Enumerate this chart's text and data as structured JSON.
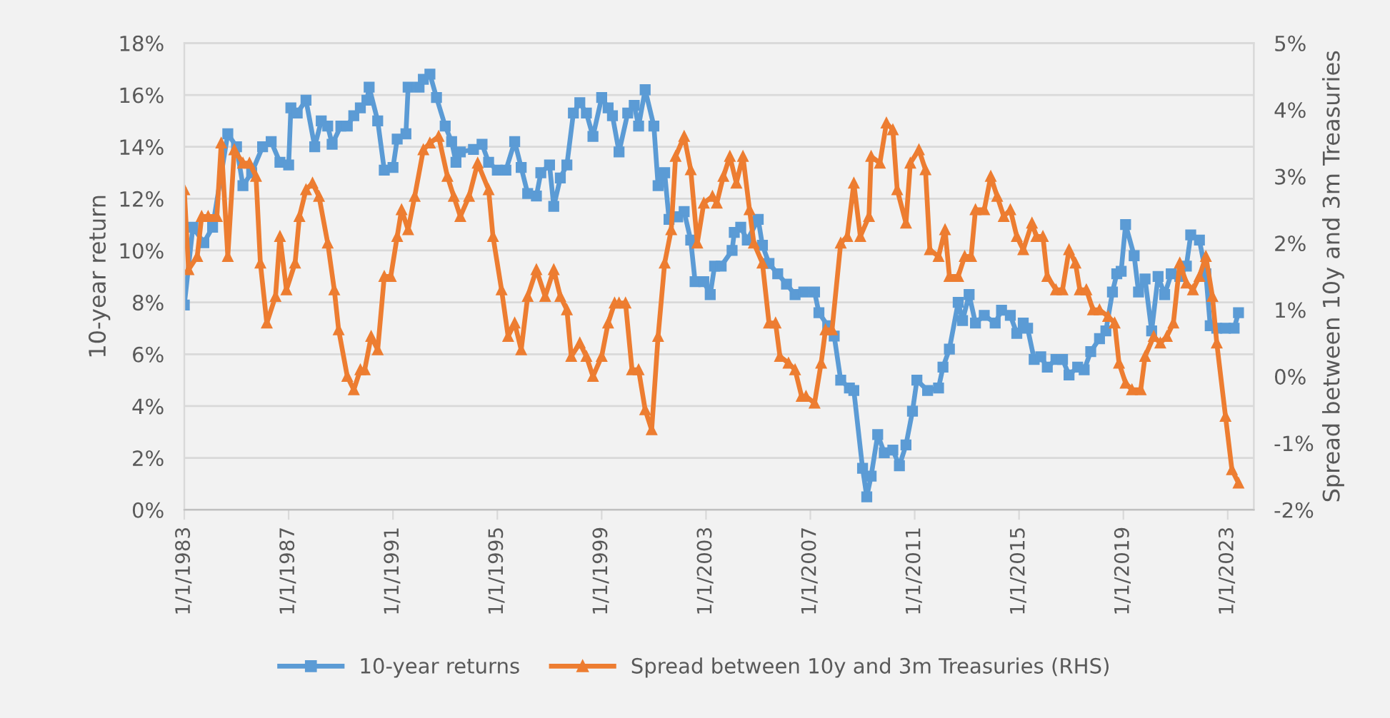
{
  "chart_data": {
    "type": "line",
    "ylabel": "10-year return",
    "y2label": "Spread between 10y and 3m Treasuries",
    "xlim": [
      "1983-01-01",
      "2024-01-01"
    ],
    "xticks": [
      {
        "value": "1983-01-01",
        "label": "1/1/1983"
      },
      {
        "value": "1987-01-01",
        "label": "1/1/1987"
      },
      {
        "value": "1991-01-01",
        "label": "1/1/1991"
      },
      {
        "value": "1995-01-01",
        "label": "1/1/1995"
      },
      {
        "value": "1999-01-01",
        "label": "1/1/1999"
      },
      {
        "value": "2003-01-01",
        "label": "1/1/2003"
      },
      {
        "value": "2007-01-01",
        "label": "1/1/2007"
      },
      {
        "value": "2011-01-01",
        "label": "1/1/2011"
      },
      {
        "value": "2015-01-01",
        "label": "1/1/2015"
      },
      {
        "value": "2019-01-01",
        "label": "1/1/2019"
      },
      {
        "value": "2023-01-01",
        "label": "1/1/2023"
      }
    ],
    "ylim": [
      0,
      18
    ],
    "yticks": [
      {
        "value": 0,
        "label": "0%"
      },
      {
        "value": 2,
        "label": "2%"
      },
      {
        "value": 4,
        "label": "4%"
      },
      {
        "value": 6,
        "label": "6%"
      },
      {
        "value": 8,
        "label": "8%"
      },
      {
        "value": 10,
        "label": "10%"
      },
      {
        "value": 12,
        "label": "12%"
      },
      {
        "value": 14,
        "label": "14%"
      },
      {
        "value": 16,
        "label": "16%"
      },
      {
        "value": 18,
        "label": "18%"
      }
    ],
    "y2lim": [
      -2,
      5
    ],
    "y2ticks": [
      {
        "value": -2,
        "label": "-2%"
      },
      {
        "value": -1,
        "label": "-1%"
      },
      {
        "value": 0,
        "label": "0%"
      },
      {
        "value": 1,
        "label": "1%"
      },
      {
        "value": 2,
        "label": "2%"
      },
      {
        "value": 3,
        "label": "3%"
      },
      {
        "value": 4,
        "label": "4%"
      },
      {
        "value": 5,
        "label": "5%"
      }
    ],
    "grid": "y",
    "legend": "bottom",
    "line_style": "solid",
    "series": [
      {
        "name": "10-year returns",
        "color": "#5b9bd5",
        "marker": "square",
        "x": [
          "1983-01",
          "1983-05",
          "1983-10",
          "1984-02",
          "1984-09",
          "1985-01",
          "1985-04",
          "1985-08",
          "1986-01",
          "1986-05",
          "1986-09",
          "1987-01",
          "1987-02",
          "1987-05",
          "1987-09",
          "1988-01",
          "1988-04",
          "1988-07",
          "1988-09",
          "1989-01",
          "1989-04",
          "1989-07",
          "1989-10",
          "1990-01",
          "1990-02",
          "1990-06",
          "1990-09",
          "1991-01",
          "1991-03",
          "1991-07",
          "1991-08",
          "1992-01",
          "1992-03",
          "1992-06",
          "1992-09",
          "1993-01",
          "1993-04",
          "1993-06",
          "1993-08",
          "1994-02",
          "1994-06",
          "1994-09",
          "1995-01",
          "1995-05",
          "1995-09",
          "1995-12",
          "1996-03",
          "1996-07",
          "1996-09",
          "1997-01",
          "1997-03",
          "1997-06",
          "1997-09",
          "1997-12",
          "1998-03",
          "1998-06",
          "1998-09",
          "1999-01",
          "1999-04",
          "1999-06",
          "1999-09",
          "2000-01",
          "2000-04",
          "2000-06",
          "2000-09",
          "2001-01",
          "2001-03",
          "2001-06",
          "2001-08",
          "2001-12",
          "2002-03",
          "2002-06",
          "2002-08",
          "2002-12",
          "2003-03",
          "2003-05",
          "2003-08",
          "2004-01",
          "2004-02",
          "2004-05",
          "2004-08",
          "2005-01",
          "2005-03",
          "2005-06",
          "2005-10",
          "2006-02",
          "2006-06",
          "2006-10",
          "2007-03",
          "2007-05",
          "2007-09",
          "2007-12",
          "2008-03",
          "2008-07",
          "2008-09",
          "2009-01",
          "2009-03",
          "2009-05",
          "2009-08",
          "2009-11",
          "2010-03",
          "2010-06",
          "2010-09",
          "2010-12",
          "2011-02",
          "2011-07",
          "2011-12",
          "2012-02",
          "2012-05",
          "2012-09",
          "2012-11",
          "2013-02",
          "2013-05",
          "2013-09",
          "2014-02",
          "2014-05",
          "2014-09",
          "2014-12",
          "2015-03",
          "2015-05",
          "2015-08",
          "2015-11",
          "2016-02",
          "2016-06",
          "2016-09",
          "2016-12",
          "2017-04",
          "2017-07",
          "2017-10",
          "2018-02",
          "2018-05",
          "2018-08",
          "2018-10",
          "2018-12",
          "2019-02",
          "2019-06",
          "2019-08",
          "2019-11",
          "2020-02",
          "2020-05",
          "2020-08",
          "2020-11",
          "2021-03",
          "2021-06",
          "2021-08",
          "2021-12",
          "2022-03",
          "2022-05",
          "2022-08",
          "2022-12",
          "2023-04",
          "2023-06"
        ],
        "values": [
          7.9,
          10.9,
          10.3,
          10.9,
          14.5,
          14.0,
          12.5,
          13.0,
          14.0,
          14.2,
          13.4,
          13.3,
          15.5,
          15.3,
          15.8,
          14.0,
          15.0,
          14.8,
          14.1,
          14.8,
          14.8,
          15.2,
          15.5,
          15.8,
          16.3,
          15.0,
          13.1,
          13.2,
          14.3,
          14.5,
          16.3,
          16.3,
          16.6,
          16.8,
          15.9,
          14.8,
          14.2,
          13.4,
          13.8,
          13.9,
          14.1,
          13.4,
          13.1,
          13.1,
          14.2,
          13.2,
          12.2,
          12.1,
          13.0,
          13.3,
          11.7,
          12.8,
          13.3,
          15.3,
          15.7,
          15.3,
          14.4,
          15.9,
          15.5,
          15.2,
          13.8,
          15.3,
          15.6,
          14.8,
          16.2,
          14.8,
          12.5,
          13.0,
          11.2,
          11.3,
          11.5,
          10.4,
          8.8,
          8.8,
          8.3,
          9.4,
          9.4,
          10.0,
          10.7,
          10.9,
          10.4,
          11.2,
          10.2,
          9.5,
          9.1,
          8.7,
          8.3,
          8.4,
          8.4,
          7.6,
          7.1,
          6.7,
          5.0,
          4.7,
          4.6,
          1.6,
          0.5,
          1.3,
          2.9,
          2.2,
          2.3,
          1.7,
          2.5,
          3.8,
          5.0,
          4.6,
          4.7,
          5.5,
          6.2,
          8.0,
          7.3,
          8.3,
          7.2,
          7.5,
          7.2,
          7.7,
          7.5,
          6.8,
          7.2,
          7.0,
          5.8,
          5.9,
          5.5,
          5.8,
          5.8,
          5.2,
          5.5,
          5.4,
          6.1,
          6.6,
          6.9,
          8.4,
          9.1,
          9.2,
          11.0,
          9.8,
          8.4,
          8.9,
          6.9,
          9.0,
          8.3,
          9.1,
          9.0,
          9.4,
          10.6,
          10.4,
          9.1,
          7.1,
          7.0,
          7.0,
          7.0,
          7.6
        ]
      },
      {
        "name": "Spread between 10y and 3m Treasuries (RHS)",
        "color": "#ed7d31",
        "marker": "triangle",
        "axis": "y2",
        "x": [
          "1983-01",
          "1983-03",
          "1983-07",
          "1983-09",
          "1983-12",
          "1984-04",
          "1984-06",
          "1984-09",
          "1984-12",
          "1985-04",
          "1985-07",
          "1985-10",
          "1985-12",
          "1986-03",
          "1986-07",
          "1986-09",
          "1986-12",
          "1987-04",
          "1987-06",
          "1987-09",
          "1987-12",
          "1988-03",
          "1988-07",
          "1988-10",
          "1988-12",
          "1989-04",
          "1989-07",
          "1989-10",
          "1989-12",
          "1990-03",
          "1990-06",
          "1990-09",
          "1990-12",
          "1991-03",
          "1991-05",
          "1991-08",
          "1991-11",
          "1992-03",
          "1992-06",
          "1992-10",
          "1993-02",
          "1993-05",
          "1993-08",
          "1993-12",
          "1994-04",
          "1994-09",
          "1994-11",
          "1995-03",
          "1995-06",
          "1995-09",
          "1995-12",
          "1996-03",
          "1996-07",
          "1996-11",
          "1997-03",
          "1997-06",
          "1997-09",
          "1997-11",
          "1998-03",
          "1998-06",
          "1998-09",
          "1999-01",
          "1999-04",
          "1999-07",
          "1999-09",
          "1999-12",
          "2000-03",
          "2000-06",
          "2000-09",
          "2000-12",
          "2001-03",
          "2001-06",
          "2001-09",
          "2001-11",
          "2002-03",
          "2002-06",
          "2002-09",
          "2002-12",
          "2003-04",
          "2003-06",
          "2003-09",
          "2003-12",
          "2004-03",
          "2004-06",
          "2004-09",
          "2004-11",
          "2005-03",
          "2005-06",
          "2005-09",
          "2005-11",
          "2006-03",
          "2006-06",
          "2006-09",
          "2006-11",
          "2007-03",
          "2007-06",
          "2007-08",
          "2007-11",
          "2008-03",
          "2008-06",
          "2008-09",
          "2008-12",
          "2009-04",
          "2009-05",
          "2009-09",
          "2009-12",
          "2010-03",
          "2010-05",
          "2010-09",
          "2010-11",
          "2011-03",
          "2011-06",
          "2011-08",
          "2011-12",
          "2012-03",
          "2012-05",
          "2012-09",
          "2012-12",
          "2013-03",
          "2013-05",
          "2013-09",
          "2013-12",
          "2014-03",
          "2014-06",
          "2014-09",
          "2014-12",
          "2015-03",
          "2015-07",
          "2015-09",
          "2015-12",
          "2016-02",
          "2016-06",
          "2016-09",
          "2016-12",
          "2017-03",
          "2017-05",
          "2017-08",
          "2017-11",
          "2018-02",
          "2018-06",
          "2018-09",
          "2018-11",
          "2019-02",
          "2019-05",
          "2019-09",
          "2019-11",
          "2020-03",
          "2020-06",
          "2020-09",
          "2020-12",
          "2021-03",
          "2021-06",
          "2021-09",
          "2021-12",
          "2022-03",
          "2022-06",
          "2022-08",
          "2022-12",
          "2023-03",
          "2023-06"
        ],
        "values": [
          2.8,
          1.6,
          1.8,
          2.4,
          2.4,
          2.4,
          3.5,
          1.8,
          3.4,
          3.2,
          3.2,
          3.0,
          1.7,
          0.8,
          1.2,
          2.1,
          1.3,
          1.7,
          2.4,
          2.8,
          2.9,
          2.7,
          2.0,
          1.3,
          0.7,
          0.0,
          -0.2,
          0.1,
          0.1,
          0.6,
          0.4,
          1.5,
          1.5,
          2.1,
          2.5,
          2.2,
          2.7,
          3.4,
          3.5,
          3.6,
          3.0,
          2.7,
          2.4,
          2.7,
          3.2,
          2.8,
          2.1,
          1.3,
          0.6,
          0.8,
          0.4,
          1.2,
          1.6,
          1.2,
          1.6,
          1.2,
          1.0,
          0.3,
          0.5,
          0.3,
          0.0,
          0.3,
          0.8,
          1.1,
          1.1,
          1.1,
          0.1,
          0.1,
          -0.5,
          -0.8,
          0.6,
          1.7,
          2.2,
          3.3,
          3.6,
          3.1,
          2.0,
          2.6,
          2.7,
          2.6,
          3.0,
          3.3,
          2.9,
          3.3,
          2.5,
          2.0,
          1.7,
          0.8,
          0.8,
          0.3,
          0.2,
          0.1,
          -0.3,
          -0.3,
          -0.4,
          0.2,
          0.7,
          0.7,
          2.0,
          2.1,
          2.9,
          2.1,
          2.4,
          3.3,
          3.2,
          3.8,
          3.7,
          2.8,
          2.3,
          3.2,
          3.4,
          3.1,
          1.9,
          1.8,
          2.2,
          1.5,
          1.5,
          1.8,
          1.8,
          2.5,
          2.5,
          3.0,
          2.7,
          2.4,
          2.5,
          2.1,
          1.9,
          2.3,
          2.1,
          2.1,
          1.5,
          1.3,
          1.3,
          1.9,
          1.7,
          1.3,
          1.3,
          1.0,
          1.0,
          0.9,
          0.8,
          0.2,
          -0.1,
          -0.2,
          -0.2,
          0.3,
          0.6,
          0.5,
          0.6,
          0.8,
          1.7,
          1.4,
          1.3,
          1.5,
          1.8,
          1.2,
          0.5,
          -0.6,
          -1.4,
          -1.6
        ]
      }
    ]
  }
}
